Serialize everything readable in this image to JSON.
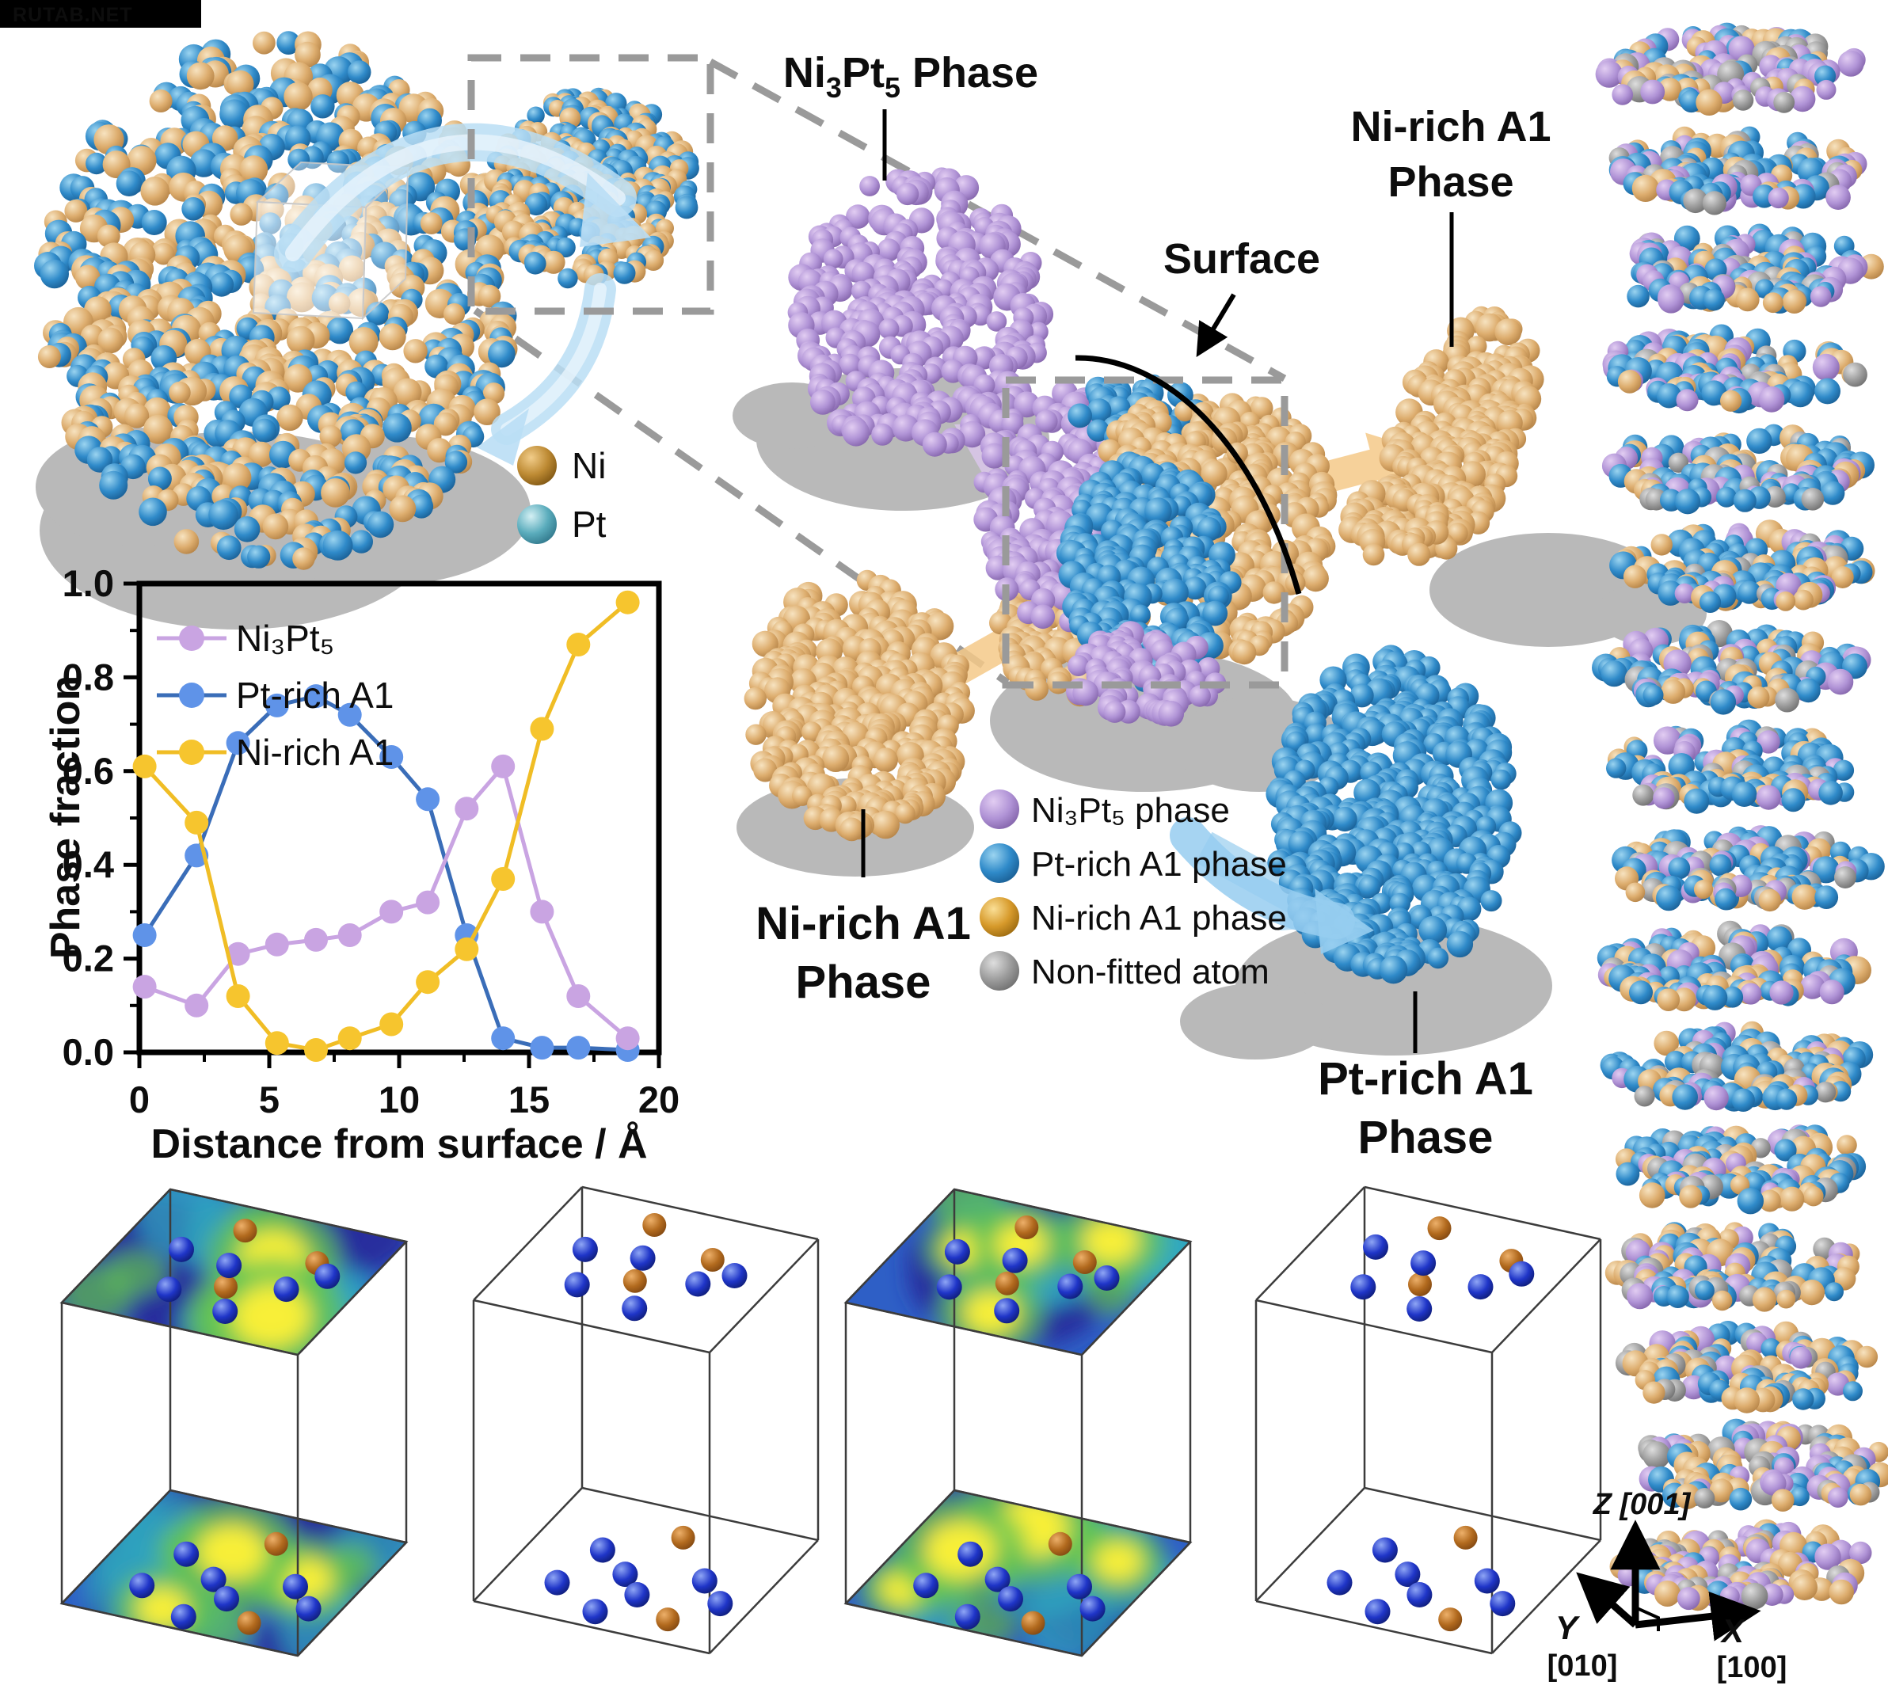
{
  "watermark": "RUTAB.NET",
  "top_section": {
    "ni3pt5_title": {
      "ni": "Ni",
      "sub3": "3",
      "pt": "Pt",
      "sub5": "5",
      "phase": " Phase"
    },
    "surface_label": "Surface",
    "ni_rich_top_line1": "Ni-rich A1",
    "ni_rich_top_line2": "Phase"
  },
  "atom_legend": {
    "ni": "Ni",
    "pt": "Pt"
  },
  "cluster_labels": {
    "ni_rich_bottom_line1": "Ni-rich A1",
    "ni_rich_bottom_line2": "Phase",
    "pt_rich_line1": "Pt-rich A1",
    "pt_rich_line2": "Phase"
  },
  "phase_legend": [
    {
      "label": "Ni₃Pt₅ phase",
      "color": "#b18fd0"
    },
    {
      "label": "Pt-rich A1 phase",
      "color": "#2f9ad6"
    },
    {
      "label": "Ni-rich A1 phase",
      "color": "#d79a2b"
    },
    {
      "label": "Non-fitted atom",
      "color": "#9e9e9e"
    }
  ],
  "axes_indicator": {
    "z": "Z [001]",
    "y_letter": "Y",
    "y_plane": "[010]",
    "x_letter": "X",
    "x_plane": "[100]"
  },
  "chart_data": {
    "type": "line",
    "title": "",
    "xlabel": "Distance from surface / Å",
    "ylabel": "Phase fraction",
    "xlim": [
      0,
      20
    ],
    "ylim": [
      0,
      1
    ],
    "xticks": [
      0,
      5,
      10,
      15,
      20
    ],
    "yticks": [
      0,
      0.2,
      0.4,
      0.6,
      0.8,
      1
    ],
    "legend_position": "top-left",
    "grid": false,
    "x": [
      0.2,
      2.2,
      3.8,
      5.3,
      6.8,
      8.1,
      9.7,
      11.1,
      12.6,
      14,
      15.5,
      16.9,
      18.8
    ],
    "series": [
      {
        "name": "Ni₃Pt₅",
        "marker_color": "#c9a4e2",
        "line_color": "#c9a4e2",
        "values": [
          0.14,
          0.1,
          0.21,
          0.23,
          0.24,
          0.25,
          0.3,
          0.32,
          0.52,
          0.61,
          0.3,
          0.12,
          0.03
        ]
      },
      {
        "name": "Pt-rich A1",
        "marker_color": "#5f93e8",
        "line_color": "#3a6db8",
        "values": [
          0.25,
          0.42,
          0.66,
          0.74,
          0.76,
          0.72,
          0.63,
          0.54,
          0.25,
          0.03,
          0.01,
          0.01,
          0.005
        ]
      },
      {
        "name": "Ni-rich A1",
        "marker_color": "#f6c52e",
        "line_color": "#f0bd25",
        "values": [
          0.61,
          0.49,
          0.12,
          0.02,
          0.005,
          0.03,
          0.06,
          0.15,
          0.22,
          0.37,
          0.69,
          0.87,
          0.96
        ]
      }
    ]
  }
}
